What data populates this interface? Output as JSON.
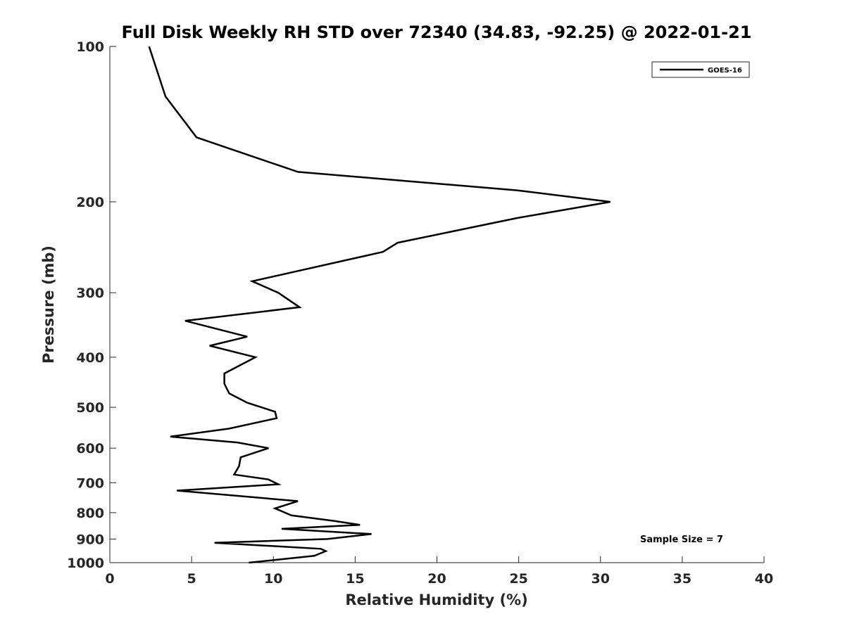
{
  "chart_data": {
    "type": "line",
    "title": "Full Disk Weekly RH STD over 72340 (34.83, -92.25) @ 2022-01-21",
    "xlabel": "Relative Humidity (%)",
    "ylabel": "Pressure (mb)",
    "xlim": [
      0,
      40
    ],
    "ylim": [
      100,
      1000
    ],
    "yscale": "log",
    "y_reversed": true,
    "grid": false,
    "xticks": [
      0,
      5,
      10,
      15,
      20,
      25,
      30,
      35,
      40
    ],
    "yticks": [
      100,
      200,
      300,
      400,
      500,
      600,
      700,
      800,
      900,
      1000
    ],
    "legend_position": "top-right",
    "series": [
      {
        "name": "GOES-16",
        "color": "#000000",
        "points": [
          [
            2.4,
            100
          ],
          [
            3.4,
            125
          ],
          [
            5.3,
            150
          ],
          [
            11.5,
            175
          ],
          [
            24.9,
            190
          ],
          [
            30.6,
            200
          ],
          [
            24.9,
            215
          ],
          [
            17.6,
            240
          ],
          [
            16.7,
            250
          ],
          [
            8.7,
            285
          ],
          [
            10.3,
            300
          ],
          [
            11.6,
            320
          ],
          [
            4.6,
            340
          ],
          [
            8.4,
            365
          ],
          [
            6.1,
            380
          ],
          [
            8.9,
            400
          ],
          [
            7.0,
            430
          ],
          [
            7.0,
            450
          ],
          [
            7.3,
            470
          ],
          [
            8.4,
            490
          ],
          [
            10.1,
            510
          ],
          [
            10.2,
            525
          ],
          [
            7.3,
            550
          ],
          [
            3.7,
            570
          ],
          [
            7.8,
            585
          ],
          [
            9.7,
            600
          ],
          [
            8.0,
            625
          ],
          [
            7.9,
            650
          ],
          [
            7.6,
            675
          ],
          [
            9.7,
            690
          ],
          [
            10.3,
            705
          ],
          [
            4.1,
            725
          ],
          [
            11.5,
            760
          ],
          [
            10.1,
            785
          ],
          [
            11.1,
            810
          ],
          [
            13.7,
            830
          ],
          [
            15.3,
            845
          ],
          [
            10.5,
            860
          ],
          [
            16.0,
            880
          ],
          [
            13.3,
            900
          ],
          [
            6.4,
            915
          ],
          [
            12.9,
            940
          ],
          [
            13.2,
            950
          ],
          [
            12.5,
            970
          ],
          [
            8.5,
            1000
          ]
        ]
      }
    ],
    "annotations": [
      "Sample Size = 7"
    ]
  }
}
